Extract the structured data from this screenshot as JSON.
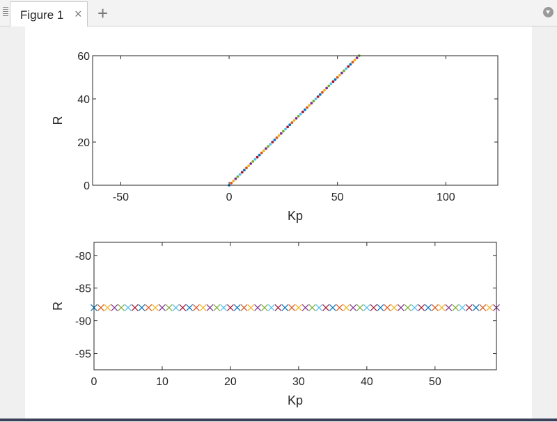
{
  "window": {
    "tab_label": "Figure 1",
    "tab_close": "×",
    "tab_add": "+"
  },
  "icons": {
    "grip": "drag-grip-icon",
    "close": "close-icon",
    "add": "plus-icon",
    "menu": "chevron-down-icon"
  },
  "chart_data": [
    {
      "type": "scatter",
      "xlabel": "Kp",
      "ylabel": "R",
      "xlim": [
        -63,
        124
      ],
      "ylim": [
        0,
        60
      ],
      "xticks": [
        -50,
        0,
        50,
        100
      ],
      "yticks": [
        0,
        20,
        40,
        60
      ],
      "marker": "dot",
      "x": [
        0,
        1,
        2,
        3,
        4,
        5,
        6,
        7,
        8,
        9,
        10,
        11,
        12,
        13,
        14,
        15,
        16,
        17,
        18,
        19,
        20,
        21,
        22,
        23,
        24,
        25,
        26,
        27,
        28,
        29,
        30,
        31,
        32,
        33,
        34,
        35,
        36,
        37,
        38,
        39,
        40,
        41,
        42,
        43,
        44,
        45,
        46,
        47,
        48,
        49,
        50,
        51,
        52,
        53,
        54,
        55,
        56,
        57,
        58,
        59,
        60
      ],
      "y": [
        0,
        1,
        2,
        3,
        4,
        5,
        6,
        7,
        8,
        9,
        10,
        11,
        12,
        13,
        14,
        15,
        16,
        17,
        18,
        19,
        20,
        21,
        22,
        23,
        24,
        25,
        26,
        27,
        28,
        29,
        30,
        31,
        32,
        33,
        34,
        35,
        36,
        37,
        38,
        39,
        40,
        41,
        42,
        43,
        44,
        45,
        46,
        47,
        48,
        49,
        50,
        51,
        52,
        53,
        54,
        55,
        56,
        57,
        58,
        59,
        60
      ]
    },
    {
      "type": "scatter",
      "xlabel": "Kp",
      "ylabel": "R",
      "xlim": [
        0,
        59
      ],
      "ylim": [
        -97.5,
        -78
      ],
      "xticks": [
        0,
        10,
        20,
        30,
        40,
        50
      ],
      "yticks": [
        -95,
        -90,
        -85,
        -80
      ],
      "marker": "x",
      "x": [
        0,
        1,
        2,
        3,
        4,
        5,
        6,
        7,
        8,
        9,
        10,
        11,
        12,
        13,
        14,
        15,
        16,
        17,
        18,
        19,
        20,
        21,
        22,
        23,
        24,
        25,
        26,
        27,
        28,
        29,
        30,
        31,
        32,
        33,
        34,
        35,
        36,
        37,
        38,
        39,
        40,
        41,
        42,
        43,
        44,
        45,
        46,
        47,
        48,
        49,
        50,
        51,
        52,
        53,
        54,
        55,
        56,
        57,
        58,
        59
      ],
      "y": [
        -88,
        -88,
        -88,
        -88,
        -88,
        -88,
        -88,
        -88,
        -88,
        -88,
        -88,
        -88,
        -88,
        -88,
        -88,
        -88,
        -88,
        -88,
        -88,
        -88,
        -88,
        -88,
        -88,
        -88,
        -88,
        -88,
        -88,
        -88,
        -88,
        -88,
        -88,
        -88,
        -88,
        -88,
        -88,
        -88,
        -88,
        -88,
        -88,
        -88,
        -88,
        -88,
        -88,
        -88,
        -88,
        -88,
        -88,
        -88,
        -88,
        -88,
        -88,
        -88,
        -88,
        -88,
        -88,
        -88,
        -88,
        -88,
        -88,
        -88
      ]
    }
  ],
  "colors": [
    "#0072BD",
    "#D95319",
    "#EDB120",
    "#7E2F8E",
    "#77AC30",
    "#4DBEEE",
    "#A2142F"
  ]
}
